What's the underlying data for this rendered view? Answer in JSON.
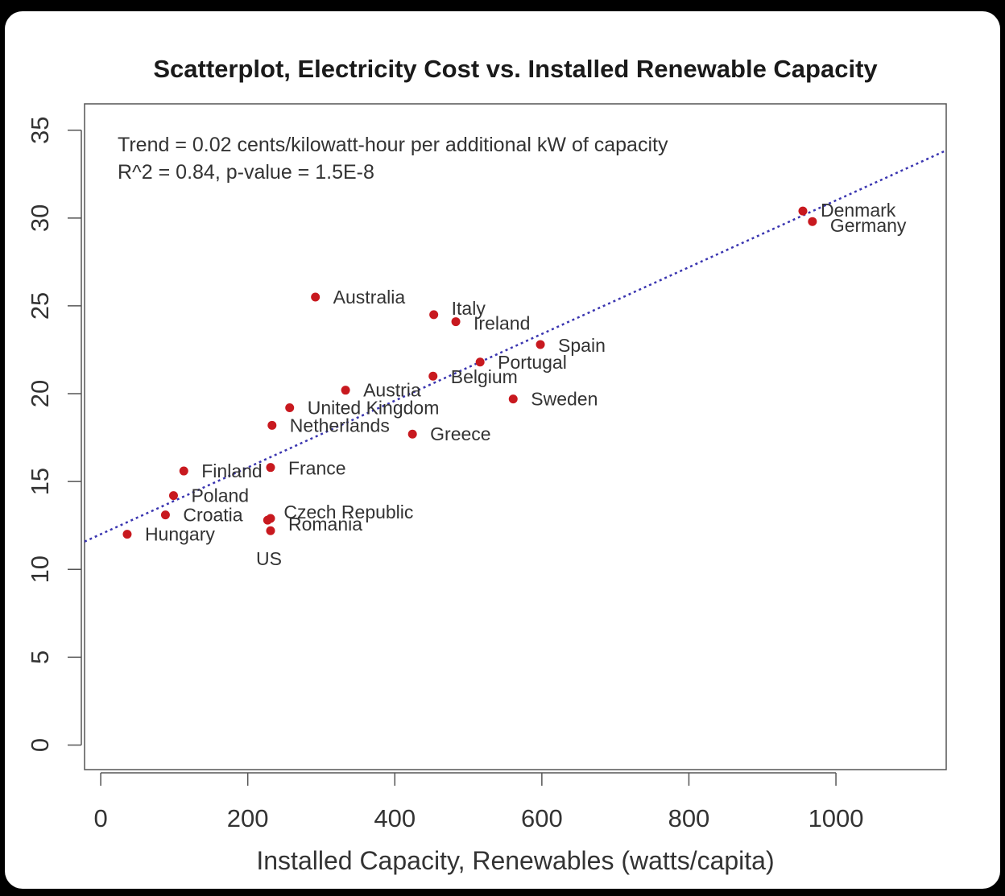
{
  "chart_data": {
    "type": "scatter",
    "title": "Scatterplot, Electricity Cost vs. Installed Renewable Capacity",
    "xlabel": "Installed Capacity, Renewables (watts/capita)",
    "ylabel": "",
    "xlim": [
      -22,
      1150
    ],
    "ylim": [
      -1.4,
      36.5
    ],
    "xticks": [
      "0",
      "200",
      "400",
      "600",
      "800",
      "1000"
    ],
    "yticks": [
      "0",
      "5",
      "10",
      "15",
      "20",
      "25",
      "30",
      "35"
    ],
    "annotations": [
      "Trend = 0.02 cents/kilowatt-hour per additional kW of capacity",
      "R^2 = 0.84, p-value = 1.5E-8"
    ],
    "grid": false,
    "point_color": "#c8191f",
    "trend_color": "#3a35b0",
    "trend_line": {
      "intercept": 12.0,
      "slope": 0.019
    },
    "points": [
      {
        "name": "Denmark",
        "x": 955,
        "y": 30.4
      },
      {
        "name": "Germany",
        "x": 968,
        "y": 29.8
      },
      {
        "name": "Australia",
        "x": 292,
        "y": 25.5
      },
      {
        "name": "Italy",
        "x": 453,
        "y": 24.5
      },
      {
        "name": "Ireland",
        "x": 483,
        "y": 24.1
      },
      {
        "name": "Spain",
        "x": 598,
        "y": 22.8
      },
      {
        "name": "Portugal",
        "x": 516,
        "y": 21.8
      },
      {
        "name": "Belgium",
        "x": 452,
        "y": 21.0
      },
      {
        "name": "Austria",
        "x": 333,
        "y": 20.2
      },
      {
        "name": "Sweden",
        "x": 561,
        "y": 19.7
      },
      {
        "name": "United Kingdom",
        "x": 257,
        "y": 19.2
      },
      {
        "name": "Netherlands",
        "x": 233,
        "y": 18.2
      },
      {
        "name": "Greece",
        "x": 424,
        "y": 17.7
      },
      {
        "name": "Finland",
        "x": 113,
        "y": 15.6
      },
      {
        "name": "France",
        "x": 231,
        "y": 15.8
      },
      {
        "name": "Poland",
        "x": 99,
        "y": 14.2
      },
      {
        "name": "Croatia",
        "x": 88,
        "y": 13.1
      },
      {
        "name": "Czech Republic",
        "x": 227,
        "y": 12.8
      },
      {
        "name": "Romania",
        "x": 231,
        "y": 12.9
      },
      {
        "name": "Hungary",
        "x": 36,
        "y": 12.0
      },
      {
        "name": "US",
        "x": 231,
        "y": 12.2
      }
    ]
  }
}
